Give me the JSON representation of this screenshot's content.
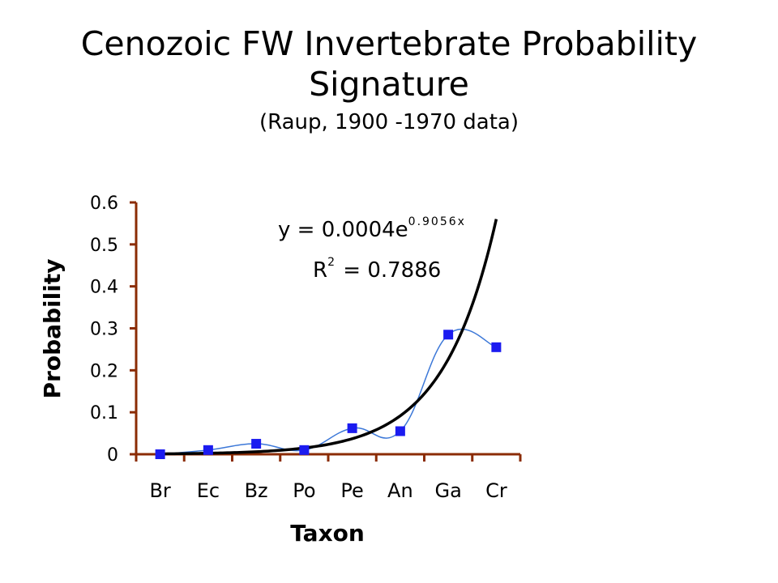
{
  "chart_data": {
    "type": "scatter",
    "title_line1": "Cenozoic FW Invertebrate Probability",
    "title_line2": "Signature",
    "subtitle": "(Raup, 1900 -1970 data)",
    "xlabel": "Taxon",
    "ylabel": "Probability",
    "categories": [
      "Br",
      "Ec",
      "Bz",
      "Po",
      "Pe",
      "An",
      "Ga",
      "Cr"
    ],
    "ylim": [
      0,
      0.6
    ],
    "yticks": [
      "0",
      "0.1",
      "0.2",
      "0.3",
      "0.4",
      "0.5",
      "0.6"
    ],
    "series": [
      {
        "values": [
          0.0,
          0.01,
          0.025,
          0.01,
          0.062,
          0.055,
          0.285,
          0.255
        ],
        "color": "#1b1bf0",
        "line_color": "#3c78d8",
        "smooth": true
      }
    ],
    "trendline": {
      "type": "exponential",
      "a": 0.0004,
      "b": 0.9056,
      "color": "#000000",
      "equation_prefix": "y = 0.0004e",
      "equation_exponent": "0.9056x",
      "r2_label": "R",
      "r2_exponent": "2",
      "r2_value": " = 0.7886"
    },
    "axis_color": "#8b2c05",
    "grid": false
  }
}
